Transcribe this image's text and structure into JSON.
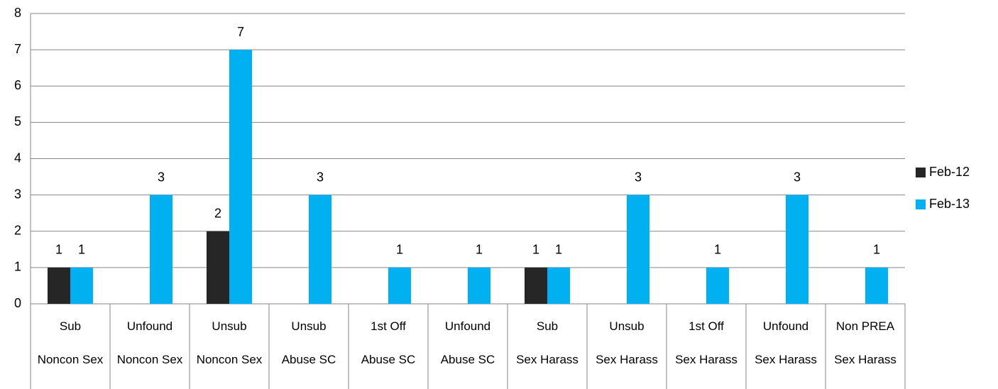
{
  "chart_data": {
    "type": "bar",
    "categories": [
      "Sub",
      "Unfound",
      "Unsub",
      "Unsub",
      "1st Off",
      "Unfound",
      "Sub",
      "Unsub",
      "1st Off",
      "Unfound",
      "Non PREA"
    ],
    "groups": [
      "Noncon Sex",
      "Noncon Sex",
      "Noncon Sex",
      "Abuse SC",
      "Abuse SC",
      "Abuse SC",
      "Sex Harass",
      "Sex Harass",
      "Sex Harass",
      "Sex Harass",
      "Sex Harass"
    ],
    "series": [
      {
        "name": "Feb-12",
        "color": "#262626",
        "values": [
          1,
          null,
          2,
          null,
          null,
          null,
          1,
          null,
          null,
          null,
          null
        ]
      },
      {
        "name": "Feb-13",
        "color": "#00b0f0",
        "values": [
          1,
          3,
          7,
          3,
          1,
          1,
          1,
          3,
          1,
          3,
          1
        ]
      }
    ],
    "ylim": [
      0,
      8
    ],
    "yticks": [
      0,
      1,
      2,
      3,
      4,
      5,
      6,
      7,
      8
    ],
    "grid": true,
    "legend": "right"
  }
}
